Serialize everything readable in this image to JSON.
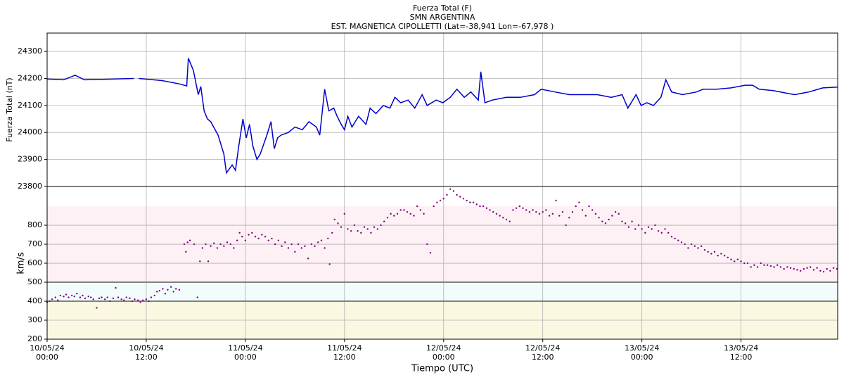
{
  "chart_data": [
    {
      "type": "line",
      "title": "Fuerza Total (F)",
      "subtitles": [
        "SMN ARGENTINA",
        "EST. MAGNETICA CIPOLLETTI (Lat=-38,941 Lon=-67,978 )"
      ],
      "ylabel": "Fuerza Total (nT)",
      "sharex": true,
      "color": "#0000cc",
      "x": [
        0,
        2.0,
        3.4,
        4.5,
        7.1,
        10.5,
        10.8,
        11.1,
        13.9,
        16.0,
        16.9,
        17.1,
        17.7,
        18.3,
        18.6,
        19.0,
        19.4,
        19.8,
        20.7,
        21.4,
        21.7,
        22.4,
        22.8,
        23.2,
        23.7,
        24.1,
        24.5,
        24.9,
        25.4,
        25.8,
        26.6,
        27.1,
        27.5,
        27.9,
        28.3,
        29.2,
        30.0,
        30.9,
        31.7,
        32.6,
        33.0,
        33.6,
        34.1,
        34.7,
        35.1,
        35.6,
        36.0,
        36.4,
        36.9,
        37.7,
        38.6,
        39.1,
        39.8,
        40.7,
        41.5,
        42.1,
        42.8,
        43.7,
        44.5,
        45.4,
        46.0,
        47.1,
        47.9,
        48.8,
        49.6,
        50.5,
        51.3,
        52.2,
        52.5,
        53.0,
        53.9,
        55.6,
        57.3,
        59.0,
        59.8,
        61.5,
        63.2,
        64.9,
        66.6,
        68.3,
        69.6,
        70.3,
        70.9,
        71.3,
        71.9,
        72.6,
        73.4,
        74.3,
        74.9,
        75.6,
        76.9,
        78.6,
        79.4,
        81.1,
        82.8,
        84.5,
        85.4,
        86.2,
        87.9,
        89.6,
        90.5,
        92.2,
        93.9,
        95.7
      ],
      "values": [
        24198,
        24195,
        24212,
        24195,
        24197,
        24200,
        null,
        24200,
        24192,
        24180,
        24172,
        24275,
        24230,
        24140,
        24170,
        24080,
        24050,
        24040,
        23990,
        23920,
        23850,
        23880,
        23860,
        23950,
        24050,
        23980,
        24030,
        23950,
        23900,
        23920,
        23990,
        24040,
        23940,
        23980,
        23990,
        24000,
        24020,
        24010,
        24040,
        24020,
        23990,
        24160,
        24080,
        24090,
        24060,
        24030,
        24010,
        24060,
        24020,
        24060,
        24030,
        24090,
        24070,
        24100,
        24090,
        24130,
        24110,
        24120,
        24090,
        24140,
        24100,
        24120,
        24110,
        24130,
        24160,
        24130,
        24150,
        24120,
        24225,
        24110,
        24120,
        24130,
        24130,
        24140,
        24160,
        24150,
        24140,
        24140,
        24140,
        24130,
        24140,
        24090,
        24120,
        24140,
        24100,
        24110,
        24100,
        24130,
        24195,
        24150,
        24140,
        24150,
        24160,
        24160,
        24165,
        24175,
        24175,
        24160,
        24155,
        24145,
        24140,
        24150,
        24165,
        24168
      ],
      "ylim": [
        23800,
        24368
      ],
      "yticks": [
        23800,
        23900,
        24000,
        24100,
        24200,
        24300
      ],
      "grid": true
    },
    {
      "type": "scatter",
      "ylabel": "km/s",
      "xlabel": "Tiempo (UTC)",
      "color": "#800080",
      "x": [
        0,
        0.3,
        0.6,
        1,
        1.3,
        1.6,
        2,
        2.3,
        2.6,
        3,
        3.3,
        3.6,
        4,
        4.3,
        4.6,
        5,
        5.3,
        5.6,
        6,
        6.3,
        6.6,
        7,
        7.3,
        7.6,
        8,
        8.3,
        8.6,
        9,
        9.3,
        9.6,
        10,
        10.3,
        10.6,
        11,
        11.3,
        11.6,
        12,
        12.3,
        12.6,
        13,
        13.3,
        13.6,
        14,
        14.3,
        14.6,
        15,
        15.3,
        15.6,
        16,
        16.6,
        16.8,
        17,
        17.3,
        17.8,
        18.2,
        18.5,
        18.8,
        19.2,
        19.5,
        19.8,
        20.2,
        20.6,
        21,
        21.4,
        21.8,
        22.2,
        22.6,
        23,
        23.3,
        23.6,
        24,
        24.4,
        24.8,
        25.2,
        25.6,
        26,
        26.4,
        26.8,
        27.2,
        27.6,
        28,
        28.4,
        28.8,
        29.2,
        29.6,
        30,
        30.4,
        30.8,
        31.2,
        31.6,
        32,
        32.4,
        32.8,
        33.2,
        33.6,
        34,
        34.2,
        34.5,
        34.8,
        35.2,
        35.6,
        36,
        36.4,
        36.8,
        37.2,
        37.6,
        38,
        38.4,
        38.8,
        39.2,
        39.6,
        40,
        40.4,
        40.8,
        41.2,
        41.6,
        42,
        42.4,
        42.8,
        43.2,
        43.6,
        44,
        44.4,
        44.8,
        45.2,
        45.6,
        46,
        46.4,
        46.8,
        47.2,
        47.6,
        48,
        48.4,
        48.8,
        49.2,
        49.6,
        50,
        50.4,
        50.8,
        51.2,
        51.6,
        52,
        52.4,
        52.8,
        53.2,
        53.6,
        54,
        54.4,
        54.8,
        55.2,
        55.6,
        56,
        56.4,
        56.8,
        57.2,
        57.6,
        58,
        58.4,
        58.8,
        59.2,
        59.6,
        60,
        60.4,
        60.8,
        61.2,
        61.6,
        62,
        62.4,
        62.8,
        63.2,
        63.6,
        64,
        64.4,
        64.8,
        65.2,
        65.6,
        66,
        66.4,
        66.8,
        67.2,
        67.6,
        68,
        68.4,
        68.8,
        69.2,
        69.6,
        70,
        70.4,
        70.8,
        71.2,
        71.6,
        72,
        72.4,
        72.8,
        73.2,
        73.6,
        74,
        74.4,
        74.8,
        75.2,
        75.6,
        76,
        76.4,
        76.8,
        77.2,
        77.6,
        78,
        78.4,
        78.8,
        79.2,
        79.6,
        80,
        80.4,
        80.8,
        81.2,
        81.6,
        82,
        82.4,
        82.8,
        83.2,
        83.6,
        84,
        84.4,
        84.8,
        85.2,
        85.6,
        86,
        86.4,
        86.8,
        87.2,
        87.6,
        88,
        88.4,
        88.8,
        89.2,
        89.6,
        90,
        90.4,
        90.8,
        91.2,
        91.6,
        92,
        92.4,
        92.8,
        93.2,
        93.6,
        94,
        94.4,
        94.8,
        95.2,
        95.6
      ],
      "values": [
        395,
        400,
        410,
        420,
        405,
        430,
        425,
        435,
        420,
        430,
        425,
        440,
        420,
        430,
        415,
        425,
        420,
        410,
        365,
        415,
        420,
        410,
        420,
        400,
        415,
        470,
        420,
        410,
        405,
        420,
        415,
        400,
        410,
        405,
        395,
        405,
        410,
        400,
        420,
        430,
        450,
        455,
        465,
        440,
        460,
        475,
        450,
        465,
        460,
        700,
        660,
        710,
        720,
        700,
        420,
        610,
        680,
        700,
        610,
        690,
        705,
        680,
        700,
        690,
        710,
        700,
        680,
        720,
        760,
        740,
        720,
        750,
        760,
        740,
        730,
        750,
        740,
        720,
        730,
        700,
        720,
        690,
        710,
        680,
        700,
        660,
        700,
        680,
        690,
        625,
        700,
        690,
        710,
        720,
        680,
        730,
        595,
        760,
        830,
        810,
        790,
        860,
        780,
        770,
        800,
        770,
        760,
        790,
        780,
        760,
        790,
        780,
        800,
        820,
        840,
        860,
        850,
        860,
        880,
        880,
        870,
        860,
        850,
        900,
        880,
        860,
        700,
        655,
        900,
        920,
        930,
        940,
        960,
        990,
        980,
        960,
        950,
        940,
        930,
        920,
        920,
        910,
        900,
        900,
        890,
        880,
        870,
        860,
        850,
        840,
        830,
        820,
        880,
        890,
        900,
        890,
        880,
        870,
        880,
        870,
        860,
        870,
        880,
        850,
        860,
        930,
        850,
        870,
        800,
        840,
        870,
        900,
        920,
        880,
        850,
        900,
        880,
        860,
        840,
        820,
        810,
        830,
        850,
        870,
        860,
        820,
        810,
        790,
        820,
        780,
        800,
        780,
        760,
        790,
        780,
        800,
        770,
        760,
        780,
        760,
        740,
        730,
        720,
        710,
        700,
        680,
        700,
        690,
        680,
        690,
        670,
        660,
        650,
        660,
        640,
        650,
        640,
        630,
        620,
        610,
        620,
        610,
        600,
        600,
        580,
        590,
        580,
        600,
        590,
        590,
        585,
        580,
        590,
        580,
        570,
        580,
        575,
        570,
        565,
        560,
        570,
        575,
        580,
        565,
        575,
        560,
        555,
        570,
        560,
        575,
        570
      ],
      "xlim": [
        0,
        95.7
      ],
      "xticks": [
        {
          "value": 0,
          "label": "10/05/24\n00:00"
        },
        {
          "value": 12,
          "label": "10/05/24\n12:00"
        },
        {
          "value": 24,
          "label": "11/05/24\n00:00"
        },
        {
          "value": 36,
          "label": "11/05/24\n12:00"
        },
        {
          "value": 48,
          "label": "12/05/24\n00:00"
        },
        {
          "value": 60,
          "label": "12/05/24\n12:00"
        },
        {
          "value": 72,
          "label": "13/05/24\n00:00"
        },
        {
          "value": 84,
          "label": "13/05/24\n12:00"
        }
      ],
      "ylim": [
        200,
        1004
      ],
      "yticks": [
        200,
        300,
        400,
        500,
        600,
        700,
        800
      ],
      "grid": true,
      "bands": [
        {
          "from": 200,
          "to": 400,
          "color": "#fbf8e1"
        },
        {
          "from": 400,
          "to": 500,
          "color": "#f2fcfd"
        },
        {
          "from": 500,
          "to": 900,
          "color": "#fdf1f5"
        }
      ]
    }
  ]
}
